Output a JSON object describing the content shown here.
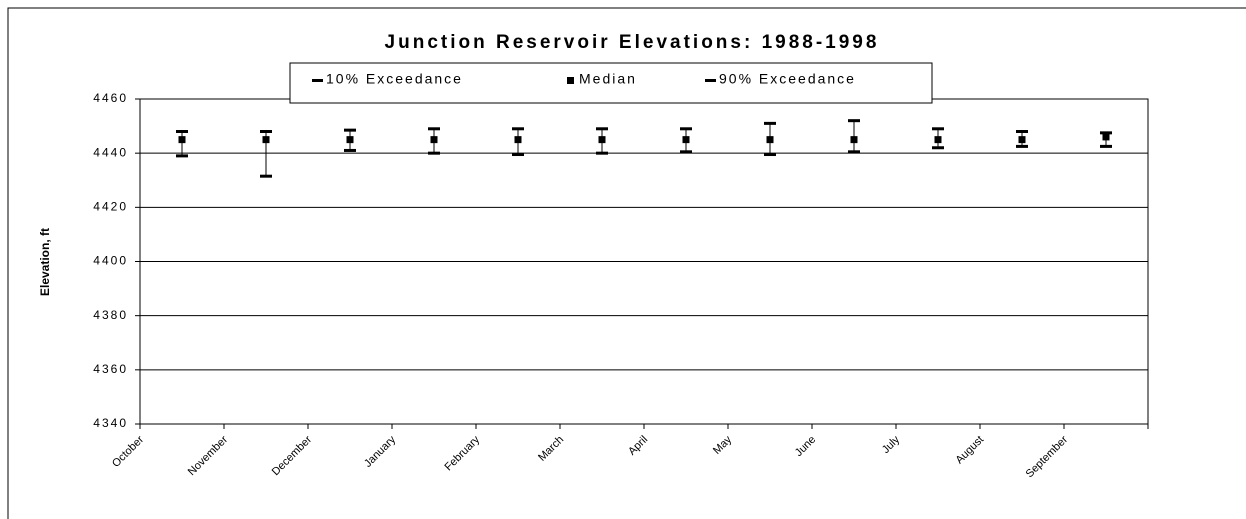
{
  "chart_data": {
    "type": "errorbar",
    "title": "Junction Reservoir Elevations:  1988-1998",
    "ylabel": "Elevation, ft",
    "categories": [
      "October",
      "November",
      "December",
      "January",
      "February",
      "March",
      "April",
      "May",
      "June",
      "July",
      "August",
      "September"
    ],
    "series": [
      {
        "name": "10% Exceedance",
        "color": "#000000",
        "values": [
          4448,
          4448,
          4448.5,
          4449,
          4449,
          4449,
          4449,
          4451,
          4452,
          4449,
          4448,
          4447.5
        ]
      },
      {
        "name": "Median",
        "color": "#000000",
        "values": [
          4445,
          4445,
          4445,
          4445,
          4445,
          4445,
          4445,
          4445,
          4445,
          4445,
          4445,
          4446
        ]
      },
      {
        "name": "90% Exceedance",
        "color": "#000000",
        "values": [
          4439,
          4431.5,
          4441,
          4440,
          4439.5,
          4440,
          4440.5,
          4439.5,
          4440.5,
          4442,
          4442.5,
          4442.5
        ]
      }
    ],
    "ylim": [
      4340,
      4460
    ],
    "yticks": [
      4340,
      4360,
      4380,
      4400,
      4420,
      4440,
      4460
    ],
    "grid": true,
    "legend": "top"
  }
}
